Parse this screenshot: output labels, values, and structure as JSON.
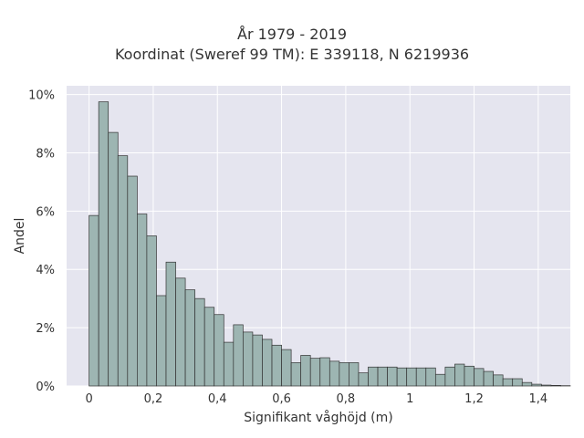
{
  "chart_data": {
    "type": "bar",
    "title": "År 1979 - 2019",
    "subtitle": "Koordinat (Sweref 99 TM): E 339118, N 6219936",
    "xlabel": "Signifikant våghöjd (m)",
    "ylabel": "Andel",
    "bin_width": 0.03,
    "bin_start": 0,
    "values_percent": [
      5.85,
      9.75,
      8.7,
      7.9,
      7.2,
      5.9,
      5.15,
      3.1,
      4.25,
      3.7,
      3.3,
      3.0,
      2.7,
      2.45,
      1.5,
      2.1,
      1.85,
      1.75,
      1.6,
      1.4,
      1.25,
      0.8,
      1.05,
      0.95,
      0.97,
      0.85,
      0.8,
      0.8,
      0.45,
      0.65,
      0.65,
      0.65,
      0.62,
      0.62,
      0.62,
      0.62,
      0.4,
      0.65,
      0.75,
      0.68,
      0.6,
      0.5,
      0.38,
      0.25,
      0.25,
      0.12,
      0.06,
      0.03,
      0.02,
      0.01
    ],
    "xlim": [
      -0.07,
      1.5
    ],
    "ylim": [
      0,
      10.3
    ],
    "x_ticks": [
      0,
      0.2,
      0.4,
      0.6,
      0.8,
      1,
      1.2,
      1.4
    ],
    "x_tick_labels": [
      "0",
      "0,2",
      "0,4",
      "0,6",
      "0,8",
      "1",
      "1,2",
      "1,4"
    ],
    "y_ticks": [
      0,
      2,
      4,
      6,
      8,
      10
    ],
    "y_tick_labels": [
      "0%",
      "2%",
      "4%",
      "6%",
      "8%",
      "10%"
    ],
    "grid": true,
    "colors": {
      "bar_fill": "#9db5b2",
      "bar_stroke": "#333333",
      "plot_bg": "#e5e5ef",
      "grid": "#ffffff"
    }
  }
}
